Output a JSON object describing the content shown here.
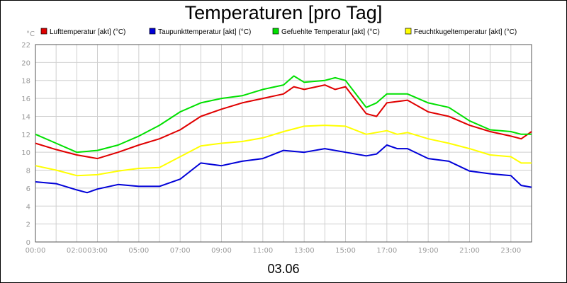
{
  "chart_data": {
    "type": "line",
    "title": "Temperaturen [pro Tag]",
    "y_unit": "°C",
    "x_date_label": "03.06",
    "x_ticks": [
      "00:00",
      "02:00",
      "03:00",
      "05:00",
      "07:00",
      "09:00",
      "11:00",
      "13:00",
      "15:00",
      "17:00",
      "19:00",
      "21:00",
      "23:00"
    ],
    "x_tick_hours": [
      0,
      2,
      3,
      5,
      7,
      9,
      11,
      13,
      15,
      17,
      19,
      21,
      23
    ],
    "x_range_hours": [
      0,
      24
    ],
    "y_ticks": [
      0,
      2,
      4,
      6,
      8,
      10,
      12,
      14,
      16,
      18,
      20,
      22
    ],
    "ylim": [
      0,
      22
    ],
    "grid": true,
    "legend_position": "top",
    "series": [
      {
        "name": "Lufttemperatur [akt] (°C)",
        "color": "#e00000",
        "x": [
          0,
          1,
          2,
          3,
          4,
          5,
          6,
          7,
          8,
          9,
          10,
          11,
          12,
          12.5,
          13,
          14,
          14.5,
          15,
          16,
          16.5,
          17,
          18,
          19,
          20,
          21,
          22,
          23,
          23.5,
          24
        ],
        "values": [
          11.0,
          10.3,
          9.7,
          9.3,
          10.0,
          10.8,
          11.5,
          12.5,
          14.0,
          14.8,
          15.5,
          16.0,
          16.5,
          17.3,
          17.0,
          17.5,
          17.0,
          17.3,
          14.3,
          14.0,
          15.5,
          15.8,
          14.5,
          14.0,
          13.0,
          12.3,
          11.8,
          11.5,
          12.3
        ]
      },
      {
        "name": "Taupunkttemperatur [akt] (°C)",
        "color": "#0000d8",
        "x": [
          0,
          1,
          2,
          2.5,
          3,
          4,
          5,
          6,
          7,
          8,
          9,
          10,
          11,
          12,
          13,
          14,
          15,
          16,
          16.5,
          17,
          17.5,
          18,
          19,
          20,
          21,
          22,
          23,
          23.5,
          24
        ],
        "values": [
          6.7,
          6.5,
          5.8,
          5.5,
          5.9,
          6.4,
          6.2,
          6.2,
          7.0,
          8.8,
          8.5,
          9.0,
          9.3,
          10.2,
          10.0,
          10.4,
          10.0,
          9.6,
          9.8,
          10.8,
          10.4,
          10.4,
          9.3,
          9.0,
          7.9,
          7.6,
          7.4,
          6.3,
          6.1
        ]
      },
      {
        "name": "Gefuehlte Temperatur [akt] (°C)",
        "color": "#00e000",
        "x": [
          0,
          1,
          2,
          3,
          4,
          5,
          6,
          7,
          8,
          9,
          10,
          11,
          12,
          12.5,
          13,
          14,
          14.5,
          15,
          16,
          16.5,
          17,
          18,
          19,
          20,
          21,
          22,
          23,
          23.5,
          24
        ],
        "values": [
          12.0,
          11.0,
          10.0,
          10.2,
          10.8,
          11.8,
          13.0,
          14.5,
          15.5,
          16.0,
          16.3,
          17.0,
          17.5,
          18.5,
          17.8,
          18.0,
          18.3,
          18.0,
          15.0,
          15.5,
          16.5,
          16.5,
          15.5,
          15.0,
          13.5,
          12.5,
          12.3,
          12.0,
          12.0
        ]
      },
      {
        "name": "Feuchtkugeltemperatur [akt] (°C)",
        "color": "#ffff00",
        "x": [
          0,
          1,
          2,
          3,
          4,
          5,
          6,
          7,
          8,
          9,
          10,
          11,
          12,
          13,
          14,
          15,
          16,
          17,
          17.5,
          18,
          19,
          20,
          21,
          22,
          23,
          23.5,
          24
        ],
        "values": [
          8.5,
          8.0,
          7.4,
          7.5,
          7.9,
          8.2,
          8.3,
          9.5,
          10.7,
          11.0,
          11.2,
          11.6,
          12.3,
          12.9,
          13.0,
          12.9,
          12.0,
          12.4,
          12.0,
          12.2,
          11.5,
          11.0,
          10.4,
          9.7,
          9.5,
          8.8,
          8.8
        ]
      }
    ]
  }
}
